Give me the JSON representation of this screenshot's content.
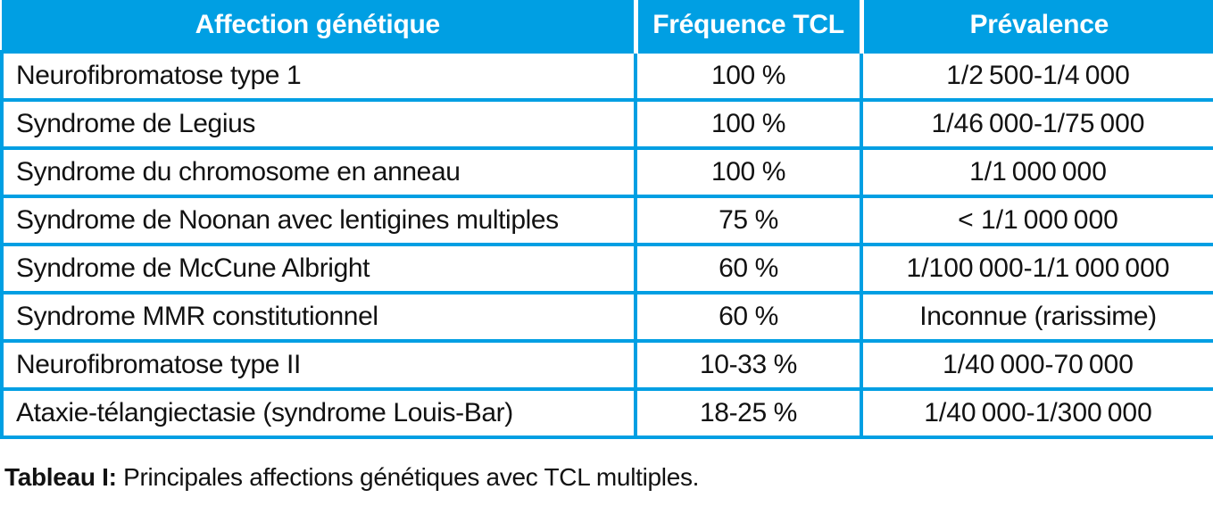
{
  "colors": {
    "header_bg": "#009FE3",
    "border": "#009FE3",
    "header_text": "#FFFFFF",
    "body_text": "#121212"
  },
  "table": {
    "columns": [
      {
        "label": "Affection génétique"
      },
      {
        "label": "Fréquence TCL"
      },
      {
        "label": "Prévalence"
      }
    ],
    "rows": [
      {
        "affection": "Neurofibromatose type 1",
        "frequence": "100 %",
        "prevalence": "1/2 500-1/4 000"
      },
      {
        "affection": "Syndrome de Legius",
        "frequence": "100 %",
        "prevalence": "1/46 000-1/75 000"
      },
      {
        "affection": "Syndrome du chromosome en anneau",
        "frequence": "100 %",
        "prevalence": "1/1 000 000"
      },
      {
        "affection": "Syndrome de Noonan avec lentigines multiples",
        "frequence": "75 %",
        "prevalence": "< 1/1 000 000"
      },
      {
        "affection": "Syndrome de McCune Albright",
        "frequence": "60 %",
        "prevalence": "1/100 000-1/1 000 000"
      },
      {
        "affection": "Syndrome MMR constitutionnel",
        "frequence": "60 %",
        "prevalence": "Inconnue (rarissime)"
      },
      {
        "affection": "Neurofibromatose type II",
        "frequence": "10-33 %",
        "prevalence": "1/40 000-70 000"
      },
      {
        "affection": "Ataxie-télangiectasie (syndrome Louis-Bar)",
        "frequence": "18-25 %",
        "prevalence": "1/40 000-1/300 000"
      }
    ],
    "caption_label": "Tableau I:",
    "caption_text": "Principales affections génétiques avec TCL multiples."
  }
}
